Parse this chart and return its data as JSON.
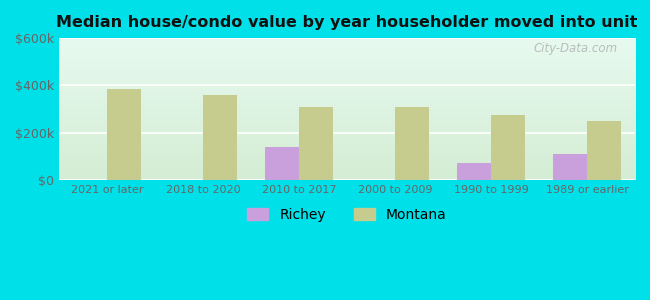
{
  "title": "Median house/condo value by year householder moved into unit",
  "categories": [
    "2021 or later",
    "2018 to 2020",
    "2010 to 2017",
    "2000 to 2009",
    "1990 to 1999",
    "1989 or earlier"
  ],
  "richey_values": [
    null,
    null,
    140000,
    null,
    72000,
    110000
  ],
  "montana_values": [
    385000,
    360000,
    310000,
    310000,
    275000,
    250000
  ],
  "richey_color": "#c9a0dc",
  "montana_color": "#c5cc8e",
  "bar_width": 0.35,
  "ylim": [
    0,
    600000
  ],
  "yticks": [
    0,
    200000,
    400000,
    600000
  ],
  "ytick_labels": [
    "$0",
    "$200k",
    "$400k",
    "$600k"
  ],
  "bg_top_color": "#e8faf0",
  "bg_bottom_color": "#d4edd4",
  "outer_bg": "#00e0e8",
  "watermark": "City-Data.com",
  "legend_labels": [
    "Richey",
    "Montana"
  ]
}
